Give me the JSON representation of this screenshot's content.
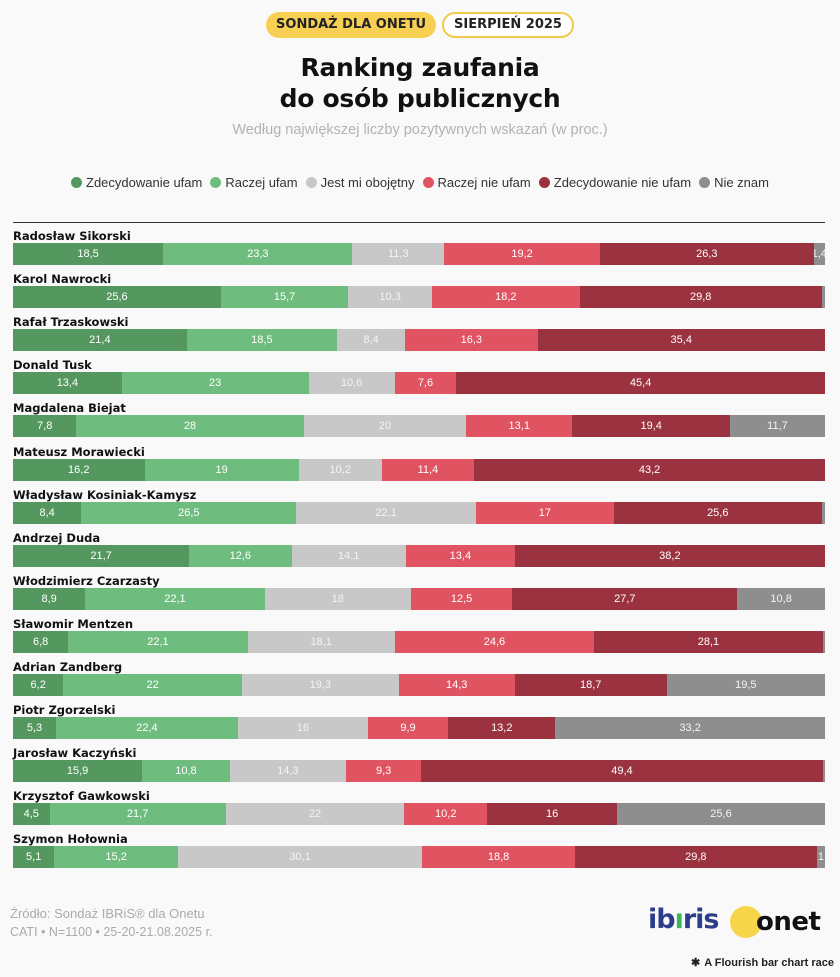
{
  "badges": {
    "left": "SONDAŻ DLA ONETU",
    "right": "SIERPIEŃ 2025"
  },
  "title_line1": "Ranking zaufania",
  "title_line2": "do osób publicznych",
  "subtitle": "Według największej liczby pozytywnych wskazań (w proc.)",
  "legend": [
    {
      "label": "Zdecydowanie ufam",
      "color": "#55985f"
    },
    {
      "label": "Raczej ufam",
      "color": "#6ebd7f"
    },
    {
      "label": "Jest mi obojętny",
      "color": "#c8c8c8"
    },
    {
      "label": "Raczej nie ufam",
      "color": "#e05462"
    },
    {
      "label": "Zdecydowanie nie ufam",
      "color": "#9b323f"
    },
    {
      "label": "Nie znam",
      "color": "#8e8e8e"
    }
  ],
  "chart_data": {
    "type": "bar",
    "orientation": "horizontal-stacked-100",
    "unit": "proc.",
    "series_names": [
      "Zdecydowanie ufam",
      "Raczej ufam",
      "Jest mi obojętny",
      "Raczej nie ufam",
      "Zdecydowanie nie ufam",
      "Nie znam"
    ],
    "series_colors": [
      "#55985f",
      "#6ebd7f",
      "#c8c8c8",
      "#e05462",
      "#9b323f",
      "#8e8e8e"
    ],
    "rows": [
      {
        "name": "Radosław Sikorski",
        "values": [
          18.5,
          23.3,
          11.3,
          19.2,
          26.3,
          1.4
        ]
      },
      {
        "name": "Karol Nawrocki",
        "values": [
          25.6,
          15.7,
          10.3,
          18.2,
          29.8,
          0.4
        ]
      },
      {
        "name": "Rafał Trzaskowski",
        "values": [
          21.4,
          18.5,
          8.4,
          16.3,
          35.4,
          0
        ]
      },
      {
        "name": "Donald Tusk",
        "values": [
          13.4,
          23,
          10.6,
          7.6,
          45.4,
          0
        ]
      },
      {
        "name": "Magdalena Biejat",
        "values": [
          7.8,
          28,
          20,
          13.1,
          19.4,
          11.7
        ]
      },
      {
        "name": "Mateusz Morawiecki",
        "values": [
          16.2,
          19,
          10.2,
          11.4,
          43.2,
          0
        ]
      },
      {
        "name": "Władysław Kosiniak-Kamysz",
        "values": [
          8.4,
          26.5,
          22.1,
          17,
          25.6,
          0.4
        ]
      },
      {
        "name": "Andrzej Duda",
        "values": [
          21.7,
          12.6,
          14.1,
          13.4,
          38.2,
          0
        ]
      },
      {
        "name": "Włodzimierz Czarzasty",
        "values": [
          8.9,
          22.1,
          18,
          12.5,
          27.7,
          10.8
        ]
      },
      {
        "name": "Sławomir Mentzen",
        "values": [
          6.8,
          22.1,
          18.1,
          24.6,
          28.1,
          0.3
        ]
      },
      {
        "name": "Adrian Zandberg",
        "values": [
          6.2,
          22,
          19.3,
          14.3,
          18.7,
          19.5
        ]
      },
      {
        "name": "Piotr Zgorzelski",
        "values": [
          5.3,
          22.4,
          16,
          9.9,
          13.2,
          33.2
        ]
      },
      {
        "name": "Jarosław Kaczyński",
        "values": [
          15.9,
          10.8,
          14.3,
          9.3,
          49.4,
          0.3
        ]
      },
      {
        "name": "Krzysztof Gawkowski",
        "values": [
          4.5,
          21.7,
          22,
          10.2,
          16,
          25.6
        ]
      },
      {
        "name": "Szymon Hołownia",
        "values": [
          5.1,
          15.2,
          30.1,
          18.8,
          29.8,
          1
        ]
      }
    ],
    "hidden_labels": [
      [],
      [],
      [],
      [],
      [],
      [],
      [
        5
      ],
      [],
      [],
      [],
      [],
      [],
      [
        5
      ],
      [],
      []
    ]
  },
  "footer": {
    "source": "Źródło: Sondaż IBRiS® dla Onetu",
    "meta": "CATI • N=1100 • 25-20-21.08.2025 r."
  },
  "logos": {
    "ibris_a": "ib",
    "ibris_dot": "ı",
    "ibris_b": "ris",
    "onet": "onet"
  },
  "flourish_credit": "A Flourish bar chart race"
}
